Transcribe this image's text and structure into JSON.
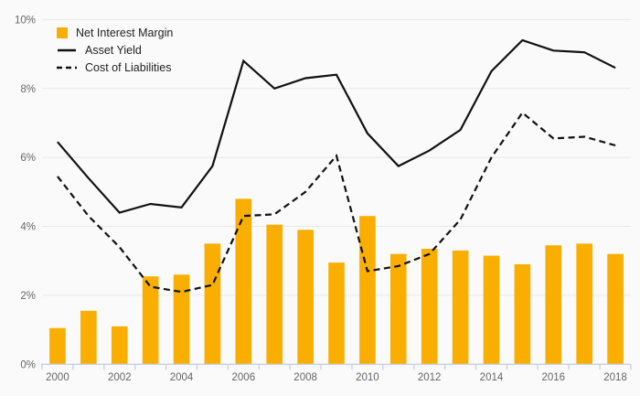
{
  "colors": {
    "bar": "#FAAE00",
    "line": "#111111",
    "grid": "#E8E8E8",
    "axis": "#C7CEE8",
    "tick_text": "#666666",
    "legend_text": "#1F1F1F",
    "background": "#FAFAFA"
  },
  "chart_data": {
    "type": "bar",
    "subtype": "bar-line-combo",
    "title": "",
    "xlabel": "",
    "ylabel": "",
    "categories": [
      2000,
      2001,
      2002,
      2003,
      2004,
      2005,
      2006,
      2007,
      2008,
      2009,
      2010,
      2011,
      2012,
      2013,
      2014,
      2015,
      2016,
      2017,
      2018
    ],
    "series": [
      {
        "name": "Net Interest Margin",
        "type": "bar",
        "style": "solid",
        "values": [
          1.05,
          1.55,
          1.1,
          2.55,
          2.6,
          3.5,
          4.8,
          4.05,
          3.9,
          2.95,
          4.3,
          3.2,
          3.35,
          3.3,
          3.15,
          2.9,
          3.45,
          3.5,
          3.2
        ]
      },
      {
        "name": "Asset Yield",
        "type": "line",
        "style": "solid",
        "values": [
          6.45,
          5.4,
          4.4,
          4.65,
          4.55,
          5.75,
          8.8,
          8.0,
          8.3,
          8.4,
          6.7,
          5.75,
          6.2,
          6.8,
          8.5,
          9.4,
          9.1,
          9.05,
          8.6
        ]
      },
      {
        "name": "Cost of Liabilities",
        "type": "line",
        "style": "dashed",
        "values": [
          5.45,
          4.3,
          3.4,
          2.25,
          2.1,
          2.3,
          4.3,
          4.35,
          5.0,
          6.05,
          2.7,
          2.85,
          3.2,
          4.2,
          6.0,
          7.3,
          6.55,
          6.6,
          6.35
        ]
      }
    ],
    "ylim": [
      0,
      10
    ],
    "ytick_step": 2,
    "ytick_labels": [
      "0%",
      "2%",
      "4%",
      "6%",
      "8%",
      "10%"
    ],
    "xtick_labels": [
      "2000",
      "2002",
      "2004",
      "2006",
      "2008",
      "2010",
      "2012",
      "2014",
      "2016",
      "2018"
    ],
    "xtick_label_every": 2,
    "grid": true,
    "legend_position": "top-left"
  }
}
